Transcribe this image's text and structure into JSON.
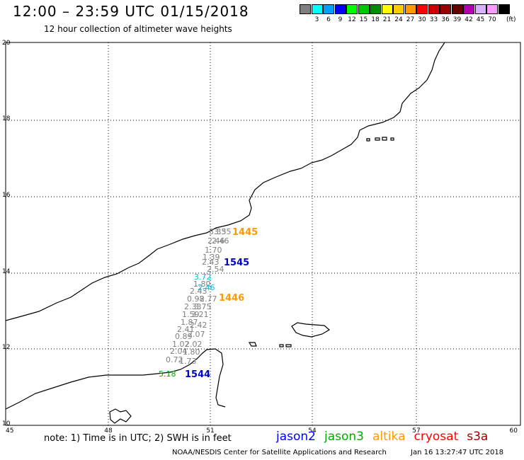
{
  "header": {
    "title": "12:00 – 23:59 UTC 01/15/2018",
    "subtitle": "12 hour collection of altimeter wave heights"
  },
  "scale": {
    "unit": "(ft)",
    "bins": [
      {
        "color": "#808080",
        "label": ""
      },
      {
        "color": "#00ffff",
        "label": "3"
      },
      {
        "color": "#00a0ff",
        "label": "6"
      },
      {
        "color": "#0000ff",
        "label": "9"
      },
      {
        "color": "#00ff00",
        "label": "12"
      },
      {
        "color": "#00c800",
        "label": "15"
      },
      {
        "color": "#008c00",
        "label": "18"
      },
      {
        "color": "#ffff00",
        "label": "21"
      },
      {
        "color": "#ffcc00",
        "label": "24"
      },
      {
        "color": "#ff9900",
        "label": "27"
      },
      {
        "color": "#ff0000",
        "label": "30"
      },
      {
        "color": "#cc0000",
        "label": "33"
      },
      {
        "color": "#960000",
        "label": "36"
      },
      {
        "color": "#660000",
        "label": "39"
      },
      {
        "color": "#b000b0",
        "label": "42"
      },
      {
        "color": "#d8b0ff",
        "label": "45"
      },
      {
        "color": "#ff99ff",
        "label": "70"
      },
      {
        "color": "#000000",
        "label": ""
      }
    ]
  },
  "axes": {
    "lon_ticks": [
      "45",
      "48",
      "51",
      "54",
      "57",
      "60"
    ],
    "lat_ticks": [
      "20",
      "18",
      "16",
      "14",
      "12",
      "10"
    ]
  },
  "passes": [
    {
      "label": "1445",
      "color": "#ff9900",
      "satellite": "altika"
    },
    {
      "label": "1545",
      "color": "#0000cc",
      "satellite": "jason2"
    },
    {
      "label": "1446",
      "color": "#ff9900",
      "satellite": "altika"
    },
    {
      "label": "1544",
      "color": "#0000cc",
      "satellite": "jason2"
    }
  ],
  "observations": [
    {
      "text": "3.35",
      "color": "#808080"
    },
    {
      "text": "3.35",
      "color": "#808080"
    },
    {
      "text": "2.46",
      "color": "#808080"
    },
    {
      "text": "2.46",
      "color": "#808080"
    },
    {
      "text": "1.70",
      "color": "#808080"
    },
    {
      "text": "1.39",
      "color": "#808080"
    },
    {
      "text": "2.43",
      "color": "#808080"
    },
    {
      "text": "2.54",
      "color": "#808080"
    },
    {
      "text": "3.72",
      "color": "#00bbdd"
    },
    {
      "text": "1.80",
      "color": "#808080"
    },
    {
      "text": "2.46",
      "color": "#00bbdd"
    },
    {
      "text": "2.43",
      "color": "#808080"
    },
    {
      "text": "0.98",
      "color": "#808080"
    },
    {
      "text": "2.77",
      "color": "#808080"
    },
    {
      "text": "2.33",
      "color": "#808080"
    },
    {
      "text": "3.75",
      "color": "#808080"
    },
    {
      "text": "1.59",
      "color": "#808080"
    },
    {
      "text": "3.21",
      "color": "#808080"
    },
    {
      "text": "1.87",
      "color": "#808080"
    },
    {
      "text": "2.42",
      "color": "#808080"
    },
    {
      "text": "2.41",
      "color": "#808080"
    },
    {
      "text": "2.07",
      "color": "#808080"
    },
    {
      "text": "0.89",
      "color": "#808080"
    },
    {
      "text": "1.02",
      "color": "#808080"
    },
    {
      "text": "2.02",
      "color": "#808080"
    },
    {
      "text": "2.04",
      "color": "#808080"
    },
    {
      "text": "1.80",
      "color": "#808080"
    },
    {
      "text": "0.72",
      "color": "#808080"
    },
    {
      "text": "1.73",
      "color": "#808080"
    },
    {
      "text": "5.18",
      "color": "#00aa00"
    }
  ],
  "note": "note: 1) Time is in UTC; 2) SWH is in feet",
  "legend": [
    {
      "name": "jason2",
      "color": "#0000ff"
    },
    {
      "name": "jason3",
      "color": "#00aa00"
    },
    {
      "name": "altika",
      "color": "#ff9900"
    },
    {
      "name": "cryosat",
      "color": "#ff0000"
    },
    {
      "name": "s3a",
      "color": "#990000"
    }
  ],
  "footer": {
    "credit": "NOAA/NESDIS Center for Satellite Applications and Research",
    "timestamp": "Jan 16 13:27:47 UTC 2018"
  }
}
